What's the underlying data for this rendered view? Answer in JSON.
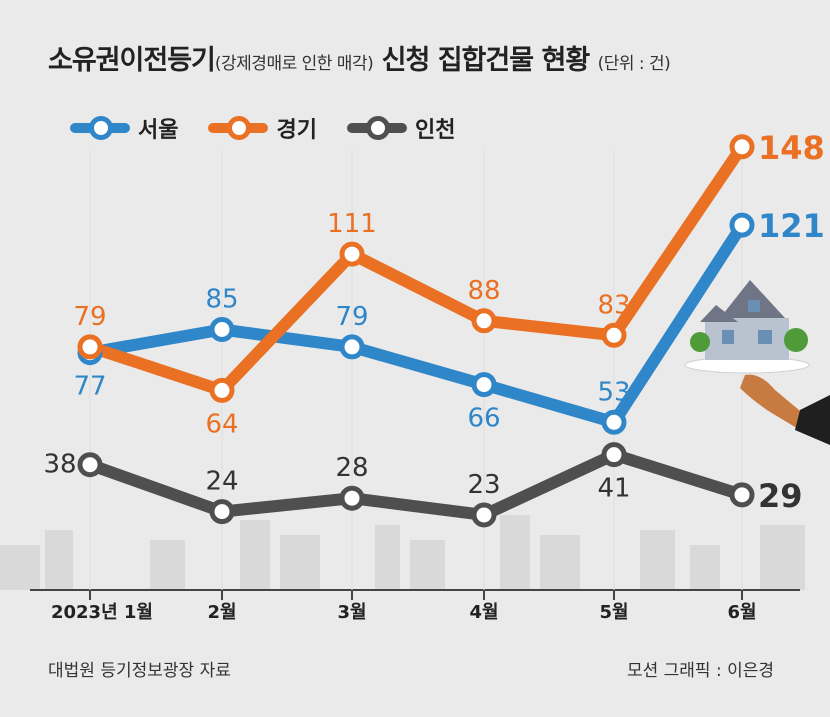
{
  "title": {
    "main": "소유권이전등기",
    "sub": "(강제경매로 인한 매각)",
    "main2": "신청 집합건물 현황",
    "unit": "(단위 : 건)"
  },
  "legend": [
    {
      "name": "서울",
      "color": "#2f86c8"
    },
    {
      "name": "경기",
      "color": "#ea7024"
    },
    {
      "name": "인천",
      "color": "#4f4f4f"
    }
  ],
  "footer": {
    "source": "대법원 등기정보광장 자료",
    "credit": "모션 그래픽 : 이은경"
  },
  "chart_data": {
    "type": "line",
    "title": "소유권이전등기(강제경매로 인한 매각) 신청 집합건물 현황",
    "unit": "건",
    "categories": [
      "2023년 1월",
      "2월",
      "3월",
      "4월",
      "5월",
      "6월"
    ],
    "series": [
      {
        "name": "서울",
        "color": "#2f86c8",
        "values": [
          77,
          85,
          79,
          66,
          53,
          121
        ]
      },
      {
        "name": "경기",
        "color": "#ea7024",
        "values": [
          79,
          64,
          111,
          88,
          83,
          148
        ]
      },
      {
        "name": "인천",
        "color": "#4f4f4f",
        "values": [
          38,
          24,
          28,
          23,
          41,
          29
        ]
      }
    ]
  }
}
